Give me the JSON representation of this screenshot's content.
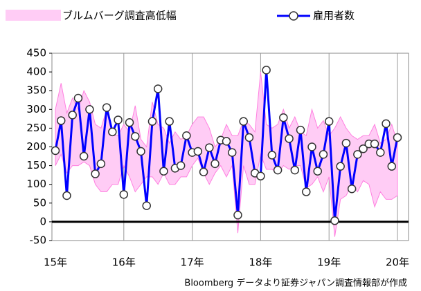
{
  "chart_data": {
    "type": "line",
    "categories": [
      "15年",
      null,
      null,
      null,
      null,
      null,
      null,
      null,
      null,
      null,
      null,
      null,
      "16年",
      null,
      null,
      null,
      null,
      null,
      null,
      null,
      null,
      null,
      null,
      null,
      "17年",
      null,
      null,
      null,
      null,
      null,
      null,
      null,
      null,
      null,
      null,
      null,
      "18年",
      null,
      null,
      null,
      null,
      null,
      null,
      null,
      null,
      null,
      null,
      null,
      "19年",
      null,
      null,
      null,
      null,
      null,
      null,
      null,
      null,
      null,
      null,
      null,
      "20年"
    ],
    "band": {
      "name": "ブルムバーグ調査高低幅",
      "color": "#ffccf5",
      "edge_color": "#ff80e0",
      "high": [
        300,
        370,
        290,
        330,
        300,
        350,
        320,
        260,
        250,
        300,
        230,
        230,
        260,
        240,
        310,
        220,
        200,
        320,
        260,
        250,
        210,
        240,
        220,
        230,
        260,
        280,
        280,
        250,
        200,
        220,
        260,
        230,
        230,
        270,
        260,
        240,
        400,
        260,
        250,
        260,
        300,
        250,
        280,
        240,
        230,
        300,
        250,
        270,
        230,
        250,
        280,
        250,
        230,
        220,
        230,
        230,
        260,
        210,
        220,
        260,
        210
      ],
      "low": [
        150,
        180,
        130,
        150,
        150,
        160,
        150,
        100,
        80,
        80,
        100,
        100,
        150,
        120,
        80,
        100,
        120,
        120,
        100,
        130,
        100,
        100,
        120,
        120,
        150,
        170,
        130,
        100,
        130,
        150,
        120,
        150,
        -30,
        150,
        100,
        100,
        180,
        140,
        140,
        130,
        150,
        140,
        150,
        150,
        90,
        100,
        120,
        80,
        120,
        -40,
        60,
        70,
        100,
        80,
        110,
        100,
        40,
        80,
        60,
        60,
        70
      ]
    },
    "series": [
      {
        "name": "雇用者数",
        "color": "#0000ff",
        "values": [
          190,
          270,
          70,
          285,
          330,
          175,
          300,
          128,
          155,
          305,
          240,
          272,
          73,
          265,
          228,
          188,
          43,
          268,
          355,
          135,
          268,
          143,
          150,
          230,
          185,
          188,
          133,
          198,
          155,
          218,
          215,
          185,
          18,
          268,
          225,
          130,
          122,
          405,
          178,
          138,
          278,
          222,
          138,
          245,
          80,
          200,
          135,
          180,
          268,
          3,
          148,
          210,
          88,
          180,
          195,
          208,
          208,
          185,
          262,
          148,
          225
        ]
      }
    ],
    "ylim": [
      -50,
      450
    ],
    "yticks": [
      -50,
      0,
      50,
      100,
      150,
      200,
      250,
      300,
      350,
      400,
      450
    ],
    "grid": true,
    "note": "Bloomberg データより証券ジャパン調査情報部が作成"
  }
}
